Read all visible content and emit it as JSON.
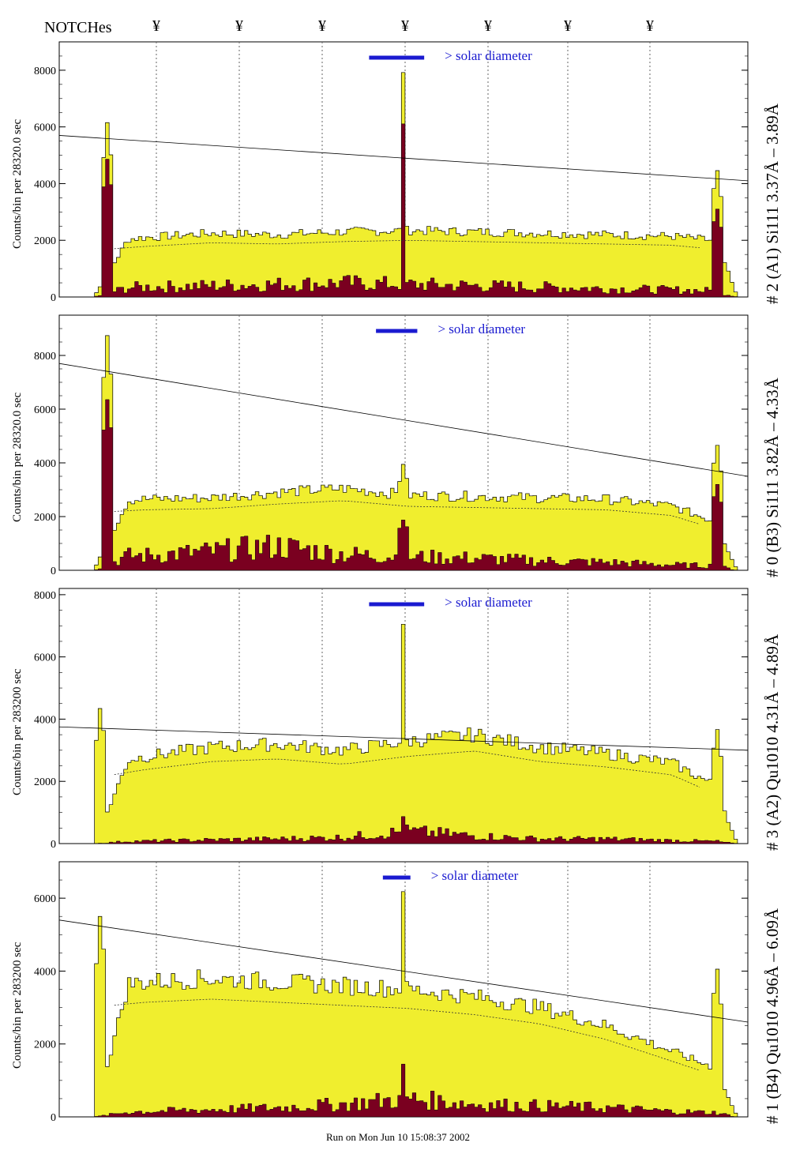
{
  "header": {
    "notches_label": "NOTCHes",
    "notch_symbol": "¥",
    "notch_positions": [
      0.19,
      0.325,
      0.46,
      0.6,
      0.735,
      0.865,
      1.0
    ]
  },
  "footer": {
    "run_info": "Run on Mon Jun 10 15:08:37 2002"
  },
  "colors": {
    "fill_total": "#f0ee2e",
    "fill_solar": "#7a0020",
    "line": "#000000",
    "solar_bar": "#1a1ad0",
    "notch_line": "#666666"
  },
  "chart_data": [
    {
      "type": "area",
      "panel_label": "# 2 (A1) Si111  3.37Å – 3.89Å",
      "ylabel": "Counts/bin per  28320.0 sec",
      "annotation": "> solar diameter",
      "ylim": [
        0,
        9000
      ],
      "yticks": [
        0,
        2000,
        4000,
        6000,
        8000
      ],
      "ticklabels": [
        "0",
        "2000",
        "4000",
        "6000",
        "8000"
      ],
      "xlim": [
        0,
        1
      ],
      "baseline": [
        1900,
        2100,
        2250,
        2200,
        2300,
        2350,
        2300,
        2250,
        2200,
        2150,
        1900
      ],
      "solar_level": [
        300,
        350,
        400,
        450,
        500,
        450,
        400,
        350,
        300,
        250,
        200
      ],
      "peaks": [
        {
          "x": 0.07,
          "y": 6200,
          "w": 0.008
        },
        {
          "x": 0.5,
          "y": 8200,
          "w": 0.004
        },
        {
          "x": 0.955,
          "y": 4600,
          "w": 0.008
        }
      ],
      "solar_peaks": [
        {
          "x": 0.07,
          "y": 4900,
          "w": 0.008
        },
        {
          "x": 0.5,
          "y": 6400,
          "w": 0.003
        },
        {
          "x": 0.955,
          "y": 3200,
          "w": 0.008
        }
      ],
      "trend": [
        [
          0,
          5700
        ],
        [
          1,
          4100
        ]
      ],
      "solar_bar": [
        0.45,
        0.53
      ]
    },
    {
      "type": "area",
      "panel_label": "# 0 (B3) Si111  3.82Å – 4.33Å",
      "ylabel": "Counts/bin per  28320.0 sec",
      "annotation": "> solar diameter",
      "ylim": [
        0,
        9500
      ],
      "yticks": [
        0,
        2000,
        4000,
        6000,
        8000
      ],
      "ticklabels": [
        "0",
        "2000",
        "4000",
        "6000",
        "8000"
      ],
      "xlim": [
        0,
        1
      ],
      "baseline": [
        2500,
        2650,
        2700,
        2900,
        3050,
        2800,
        2750,
        2700,
        2650,
        2400,
        1500
      ],
      "solar_level": [
        500,
        550,
        700,
        900,
        600,
        500,
        450,
        350,
        300,
        200,
        150
      ],
      "peaks": [
        {
          "x": 0.07,
          "y": 8800,
          "w": 0.009
        },
        {
          "x": 0.5,
          "y": 4000,
          "w": 0.01
        },
        {
          "x": 0.955,
          "y": 4800,
          "w": 0.008
        }
      ],
      "solar_peaks": [
        {
          "x": 0.07,
          "y": 6400,
          "w": 0.009
        },
        {
          "x": 0.5,
          "y": 1900,
          "w": 0.01
        },
        {
          "x": 0.955,
          "y": 3300,
          "w": 0.008
        }
      ],
      "trend": [
        [
          0,
          7700
        ],
        [
          1,
          3500
        ]
      ],
      "solar_bar": [
        0.46,
        0.52
      ]
    },
    {
      "type": "area",
      "panel_label": "# 3 (A2) Qu1010  4.31Å – 4.89Å",
      "ylabel": "Counts/bin per  283200 sec",
      "annotation": "> solar diameter",
      "ylim": [
        0,
        8200
      ],
      "yticks": [
        0,
        2000,
        4000,
        6000,
        8000
      ],
      "ticklabels": [
        "0",
        "2000",
        "4000",
        "6000",
        "8000"
      ],
      "xlim": [
        0,
        1
      ],
      "baseline": [
        2400,
        2800,
        3100,
        3200,
        3000,
        3300,
        3500,
        3100,
        2900,
        2600,
        1500
      ],
      "solar_level": [
        60,
        80,
        120,
        150,
        200,
        400,
        250,
        150,
        150,
        100,
        60
      ],
      "peaks": [
        {
          "x": 0.06,
          "y": 4500,
          "w": 0.007
        },
        {
          "x": 0.5,
          "y": 7300,
          "w": 0.004
        },
        {
          "x": 0.955,
          "y": 3800,
          "w": 0.007
        }
      ],
      "solar_peaks": [
        {
          "x": 0.5,
          "y": 900,
          "w": 0.004
        }
      ],
      "trend": [
        [
          0,
          3750
        ],
        [
          1,
          3000
        ]
      ],
      "solar_bar": [
        0.45,
        0.53
      ]
    },
    {
      "type": "area",
      "panel_label": "# 1 (B4) Qu1010 4.96Å – 6.09Å",
      "ylabel": "Counts/bin per  283200 sec",
      "annotation": "> solar diameter",
      "ylim": [
        0,
        7000
      ],
      "yticks": [
        0,
        2000,
        4000,
        6000
      ],
      "ticklabels": [
        "0",
        "2000",
        "4000",
        "6000"
      ],
      "xlim": [
        0,
        1
      ],
      "baseline": [
        3500,
        3700,
        3800,
        3700,
        3600,
        3500,
        3300,
        3000,
        2500,
        1800,
        1100
      ],
      "solar_level": [
        100,
        150,
        200,
        250,
        350,
        500,
        350,
        300,
        250,
        150,
        100
      ],
      "peaks": [
        {
          "x": 0.06,
          "y": 5700,
          "w": 0.007
        },
        {
          "x": 0.5,
          "y": 6400,
          "w": 0.004
        },
        {
          "x": 0.955,
          "y": 4200,
          "w": 0.007
        }
      ],
      "solar_peaks": [
        {
          "x": 0.5,
          "y": 1500,
          "w": 0.004
        }
      ],
      "trend": [
        [
          0,
          5400
        ],
        [
          1,
          2600
        ]
      ],
      "solar_bar": [
        0.47,
        0.51
      ]
    }
  ]
}
